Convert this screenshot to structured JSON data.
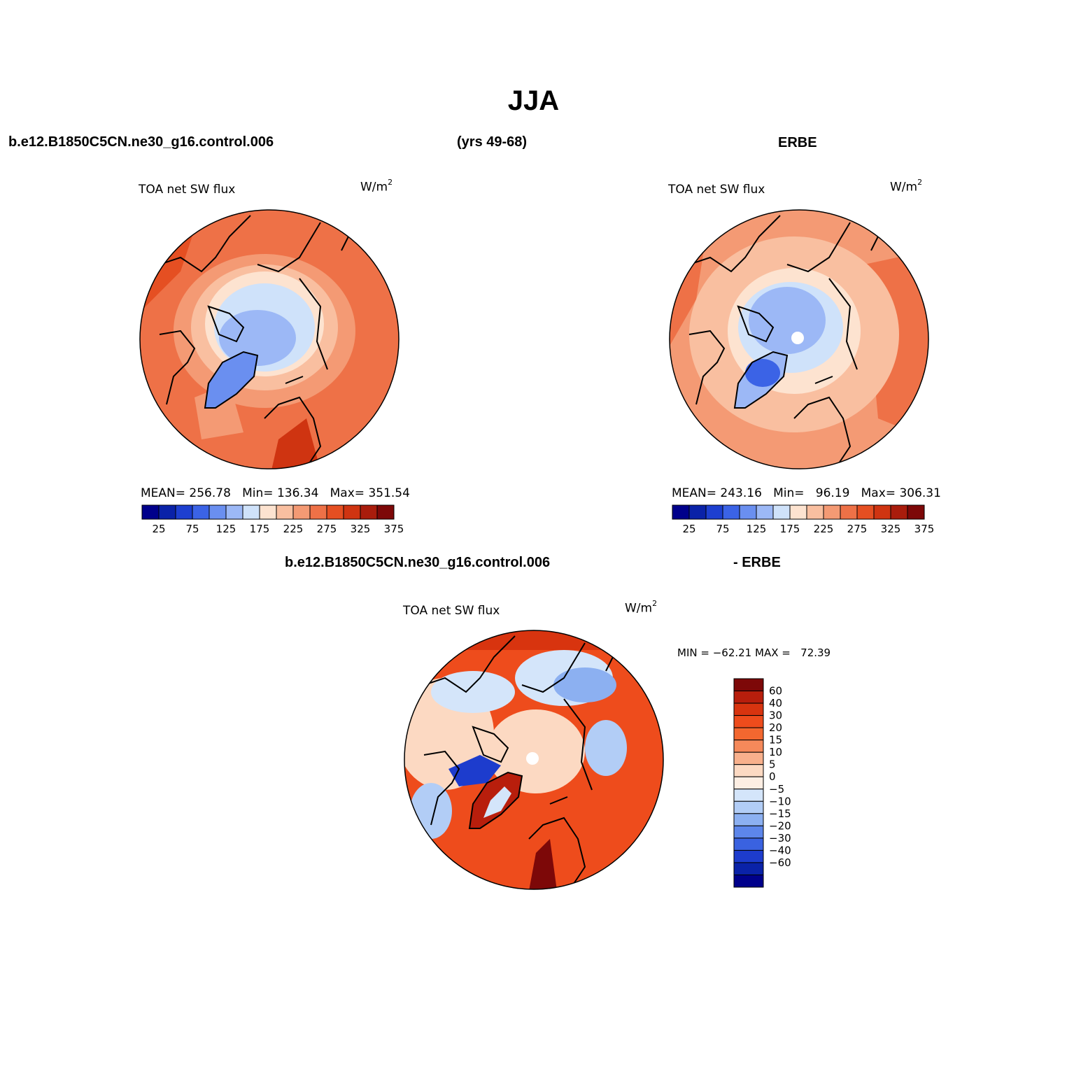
{
  "page": {
    "season": "JJA",
    "case_name": "b.e12.B1850C5CN.ne30_g16.control.006",
    "years": "(yrs 49-68)",
    "obs_name": "ERBE",
    "diff_case_name": "b.e12.B1850C5CN.ne30_g16.control.006",
    "diff_obs_name": "- ERBE"
  },
  "panels": [
    {
      "id": "model",
      "variable": "TOA net SW flux",
      "units": "W/m",
      "units_sup": "2",
      "stats": {
        "mean_label": "MEAN=",
        "mean": "256.78",
        "min_label": "Min=",
        "min": "136.34",
        "max_label": "Max=",
        "max": "351.54"
      }
    },
    {
      "id": "obs",
      "variable": "TOA net SW flux",
      "units": "W/m",
      "units_sup": "2",
      "stats": {
        "mean_label": "MEAN=",
        "mean": "243.16",
        "min_label": "Min=",
        "min": "96.19",
        "max_label": "Max=",
        "max": "306.31"
      }
    },
    {
      "id": "diff",
      "variable": "TOA net SW flux",
      "units": "W/m",
      "units_sup": "2",
      "stats": {
        "min_label": "MIN =",
        "min": "−62.21",
        "max_label": "MAX =",
        "max": "72.39"
      }
    }
  ],
  "colorbar_abs": {
    "colors": [
      "#00008b",
      "#0a22a8",
      "#1d3fd0",
      "#3b63e6",
      "#6a8ff0",
      "#9cb8f6",
      "#cfe2fa",
      "#fde3d0",
      "#f9bfa0",
      "#f49a74",
      "#ee7147",
      "#e54f22",
      "#cf3411",
      "#a91c0c",
      "#7d0808"
    ],
    "labels": [
      "25",
      "75",
      "125",
      "175",
      "225",
      "275",
      "325",
      "375"
    ]
  },
  "colorbar_diff": {
    "colors": [
      "#7d0808",
      "#b81e0c",
      "#d8340f",
      "#ee4c1c",
      "#f3672f",
      "#f5895a",
      "#f8b08c",
      "#fcd9c2",
      "#fdeee3",
      "#d4e5fa",
      "#b2cdf6",
      "#8cb0f1",
      "#5d86ea",
      "#3a62e0",
      "#1d3ccd",
      "#0a22a8",
      "#00008b"
    ],
    "labels": [
      "60",
      "40",
      "30",
      "20",
      "15",
      "10",
      "5",
      "0",
      "−5",
      "−10",
      "−15",
      "−20",
      "−30",
      "−40",
      "−60"
    ]
  }
}
